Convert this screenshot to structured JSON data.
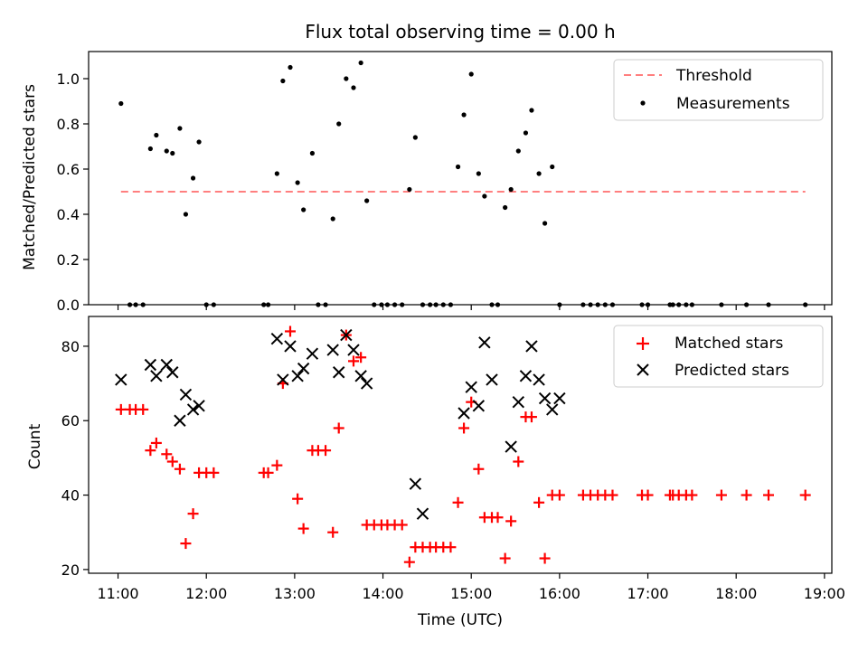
{
  "chart_data": [
    {
      "type": "scatter",
      "title": "Flux total observing time = 0.00 h",
      "xlabel": "",
      "ylabel": "Matched/Predicted stars",
      "xlim": [
        "10:40",
        "19:05"
      ],
      "ylim": [
        0,
        1.12
      ],
      "xticks": [
        "11:00",
        "12:00",
        "13:00",
        "14:00",
        "15:00",
        "16:00",
        "17:00",
        "18:00",
        "19:00"
      ],
      "yticks": [
        "0.0",
        "0.2",
        "0.4",
        "0.6",
        "0.8",
        "1.0"
      ],
      "legend_position": "top-right",
      "threshold": {
        "name": "Threshold",
        "y": 0.5,
        "x_from": "11:02",
        "x_to": "18:47",
        "color": "#ff7f7f"
      },
      "series": [
        {
          "name": "Measurements",
          "color": "#000000",
          "marker": "dot",
          "x": [
            "11:02",
            "11:08",
            "11:12",
            "11:17",
            "11:22",
            "11:26",
            "11:33",
            "11:37",
            "11:42",
            "11:46",
            "11:51",
            "11:55",
            "12:00",
            "12:05",
            "12:39",
            "12:42",
            "12:48",
            "12:52",
            "12:57",
            "13:02",
            "13:06",
            "13:12",
            "13:16",
            "13:21",
            "13:26",
            "13:30",
            "13:35",
            "13:40",
            "13:45",
            "13:49",
            "13:54",
            "13:59",
            "14:03",
            "14:08",
            "14:13",
            "14:18",
            "14:22",
            "14:27",
            "14:32",
            "14:36",
            "14:41",
            "14:46",
            "14:51",
            "14:55",
            "15:00",
            "15:05",
            "15:09",
            "15:14",
            "15:18",
            "15:23",
            "15:27",
            "15:32",
            "15:37",
            "15:41",
            "15:46",
            "15:50",
            "15:55",
            "16:00",
            "16:16",
            "16:21",
            "16:26",
            "16:31",
            "16:36",
            "16:56",
            "17:00",
            "17:15",
            "17:17",
            "17:21",
            "17:26",
            "17:30",
            "17:50",
            "18:07",
            "18:22",
            "18:47"
          ],
          "y": [
            0.89,
            0,
            0,
            0,
            0.69,
            0.75,
            0.68,
            0.67,
            0.78,
            0.4,
            0.56,
            0.72,
            0,
            0,
            0,
            0,
            0.58,
            0.99,
            1.05,
            0.54,
            0.42,
            0.67,
            0,
            0,
            0.38,
            0.8,
            1.0,
            0.96,
            1.07,
            0.46,
            0,
            0,
            0,
            0,
            0,
            0.51,
            0.74,
            0,
            0,
            0,
            0,
            0,
            0.61,
            0.84,
            1.02,
            0.58,
            0.48,
            0,
            0,
            0.43,
            0.51,
            0.68,
            0.76,
            0.86,
            0.58,
            0.36,
            0.61,
            0,
            0,
            0,
            0,
            0,
            0,
            0,
            0,
            0,
            0,
            0,
            0,
            0,
            0,
            0,
            0,
            0
          ]
        }
      ]
    },
    {
      "type": "scatter",
      "title": "",
      "xlabel": "Time (UTC)",
      "ylabel": "Count",
      "xlim": [
        "10:40",
        "19:05"
      ],
      "ylim": [
        19,
        88
      ],
      "xticks": [
        "11:00",
        "12:00",
        "13:00",
        "14:00",
        "15:00",
        "16:00",
        "17:00",
        "18:00",
        "19:00"
      ],
      "yticks": [
        "20",
        "40",
        "60",
        "80"
      ],
      "legend_position": "top-right",
      "series": [
        {
          "name": "Matched stars",
          "color": "#ff0000",
          "marker": "plus",
          "x": [
            "11:02",
            "11:08",
            "11:12",
            "11:17",
            "11:22",
            "11:26",
            "11:33",
            "11:37",
            "11:42",
            "11:46",
            "11:51",
            "11:55",
            "12:00",
            "12:05",
            "12:39",
            "12:42",
            "12:48",
            "12:52",
            "12:57",
            "13:02",
            "13:06",
            "13:12",
            "13:16",
            "13:21",
            "13:26",
            "13:30",
            "13:35",
            "13:40",
            "13:45",
            "13:49",
            "13:54",
            "13:59",
            "14:03",
            "14:08",
            "14:13",
            "14:18",
            "14:22",
            "14:27",
            "14:32",
            "14:36",
            "14:41",
            "14:46",
            "14:51",
            "14:55",
            "15:00",
            "15:05",
            "15:09",
            "15:14",
            "15:18",
            "15:23",
            "15:27",
            "15:32",
            "15:37",
            "15:41",
            "15:46",
            "15:50",
            "15:55",
            "16:00",
            "16:16",
            "16:21",
            "16:26",
            "16:31",
            "16:36",
            "16:56",
            "17:00",
            "17:15",
            "17:17",
            "17:21",
            "17:26",
            "17:30",
            "17:50",
            "18:07",
            "18:22",
            "18:47"
          ],
          "y": [
            63,
            63,
            63,
            63,
            52,
            54,
            51,
            49,
            47,
            27,
            35,
            46,
            46,
            46,
            46,
            46,
            48,
            70,
            84,
            39,
            31,
            52,
            52,
            52,
            30,
            58,
            83,
            76,
            77,
            32,
            32,
            32,
            32,
            32,
            32,
            22,
            26,
            26,
            26,
            26,
            26,
            26,
            38,
            58,
            65,
            47,
            34,
            34,
            34,
            23,
            33,
            49,
            61,
            61,
            38,
            23,
            40,
            40,
            40,
            40,
            40,
            40,
            40,
            40,
            40,
            40,
            40,
            40,
            40,
            40,
            40,
            40,
            40,
            40
          ]
        },
        {
          "name": "Predicted stars",
          "color": "#000000",
          "marker": "x",
          "x": [
            "11:02",
            "11:22",
            "11:26",
            "11:33",
            "11:37",
            "11:42",
            "11:46",
            "11:51",
            "11:55",
            "12:48",
            "12:52",
            "12:57",
            "13:02",
            "13:06",
            "13:12",
            "13:26",
            "13:30",
            "13:35",
            "13:40",
            "13:45",
            "13:49",
            "14:22",
            "14:27",
            "14:55",
            "15:00",
            "15:05",
            "15:09",
            "15:14",
            "15:27",
            "15:32",
            "15:37",
            "15:41",
            "15:46",
            "15:50",
            "15:55",
            "16:00"
          ],
          "y": [
            71,
            75,
            72,
            75,
            73,
            60,
            67,
            63,
            64,
            82,
            71,
            80,
            72,
            74,
            78,
            79,
            73,
            83,
            79,
            72,
            70,
            43,
            35,
            62,
            69,
            64,
            81,
            71,
            53,
            65,
            72,
            80,
            71,
            66,
            63,
            66
          ]
        }
      ]
    }
  ]
}
